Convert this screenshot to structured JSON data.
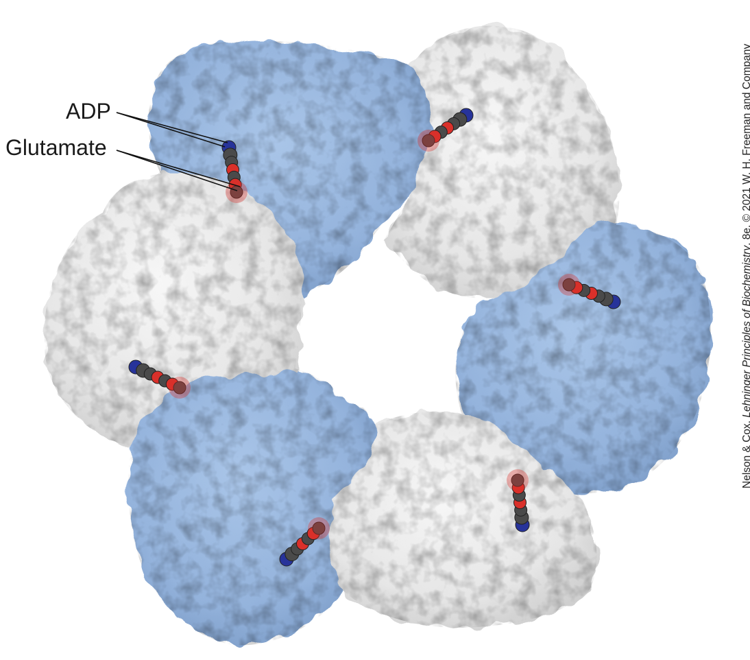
{
  "labels": {
    "adp": "ADP",
    "glutamate": "Glutamate"
  },
  "credit": {
    "prefix": "Nelson & Cox, ",
    "title": "Lehninger Principles of Biochemistry",
    "suffix": ", 8e, © 2021 W. H. Freeman and Company"
  },
  "colors": {
    "blue_subunit": "#9ab8df",
    "white_subunit": "#e9e9e9",
    "ligand_red": "#d9302a",
    "ligand_blue": "#27339a",
    "ligand_gray": "#4a4a4a"
  }
}
